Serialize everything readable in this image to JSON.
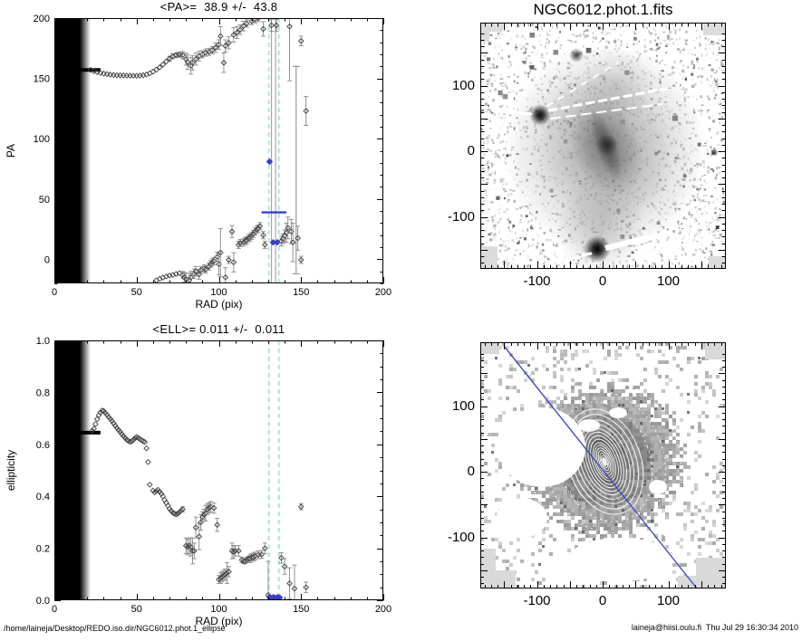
{
  "window": {
    "background": "#ffffff"
  },
  "panels": {
    "pa_plot": {
      "title": "<PA>=  38.9 +/-  43.8",
      "xlabel": "RAD (pix)",
      "ylabel": "PA"
    },
    "ell_plot": {
      "title": "<ELL>= 0.011 +/-  0.011",
      "xlabel": "RAD (pix)",
      "ylabel": "ellipticity"
    },
    "image_top": {
      "title": "NGC6012.phot.1.fits"
    },
    "image_bottom": {
      "overlay": "ellipse-fit contours and blue position-angle line"
    }
  },
  "footer": {
    "left": "/home/laineja/Desktop/REDO.iso.dir/NGC6012.phot.1_ellipse",
    "right": "laineja@hiisi.oulu.fi  Thu Jul 29 16:30:34 2010"
  },
  "colors": {
    "axis": "#000000",
    "point_stroke": "#3f3f3f",
    "error_bar": "#878787",
    "gray_vline": "#999999",
    "cyan_dashed": "#a9eaea",
    "blue": "#3b3bcb",
    "band": "#000000"
  },
  "chart_data": [
    {
      "id": "pa",
      "type": "scatter",
      "title": "<PA>=  38.9 +/-  43.8",
      "xlabel": "RAD (pix)",
      "ylabel": "PA",
      "xlim": [
        0,
        200
      ],
      "ylim": [
        -20,
        200
      ],
      "xticks": [
        0,
        50,
        100,
        150,
        200
      ],
      "xtick_labels": [
        "0",
        "50",
        "100",
        "150",
        "200"
      ],
      "yticks": [
        0,
        50,
        100,
        150,
        200
      ],
      "ytick_labels": [
        "0",
        "50",
        "100",
        "150",
        "200"
      ],
      "xminor": 10,
      "yminor": 10,
      "grid": false,
      "mask_band": {
        "x0": 0,
        "x1": 22
      },
      "thick_line": {
        "y": 157,
        "x0": 0,
        "x1": 28
      },
      "cyan_dashed_vlines": [
        130.4,
        136.5
      ],
      "gray_vlines": [
        132,
        134.5
      ],
      "tall_error_bar": {
        "x": 147,
        "y0": -12,
        "y1": 160
      },
      "mean_segment": {
        "y": 38.9,
        "x0": 126,
        "x1": 141
      },
      "blue_points": [
        [
          130.8,
          81
        ],
        [
          133,
          14
        ],
        [
          135.5,
          14
        ]
      ],
      "points": [
        [
          22,
          157,
          0
        ],
        [
          24,
          156,
          0
        ],
        [
          26,
          155.2,
          0
        ],
        [
          28,
          154.5,
          0
        ],
        [
          30,
          154,
          0
        ],
        [
          32,
          153.5,
          0
        ],
        [
          34,
          153.1,
          0
        ],
        [
          36,
          152.8,
          0
        ],
        [
          38,
          152.6,
          0
        ],
        [
          40,
          152.5,
          0
        ],
        [
          42,
          152.4,
          0
        ],
        [
          44,
          152.3,
          0
        ],
        [
          46,
          152.3,
          0
        ],
        [
          48,
          152.2,
          0
        ],
        [
          50,
          152.2,
          0
        ],
        [
          52,
          152.3,
          0
        ],
        [
          54,
          152.6,
          0
        ],
        [
          56,
          153.2,
          0
        ],
        [
          58,
          154.2,
          0
        ],
        [
          60,
          155.6,
          0
        ],
        [
          62,
          157.2,
          0
        ],
        [
          64,
          159.2,
          0
        ],
        [
          66,
          161.5,
          0
        ],
        [
          68,
          164,
          0
        ],
        [
          70,
          166.4,
          2
        ],
        [
          72,
          168.3,
          2
        ],
        [
          74,
          169.3,
          2
        ],
        [
          76,
          169.7,
          2
        ],
        [
          78,
          169.3,
          3
        ],
        [
          80,
          166,
          5
        ],
        [
          81,
          163.5,
          6
        ],
        [
          83,
          160.5,
          7
        ],
        [
          84,
          163,
          6
        ],
        [
          86,
          166,
          5
        ],
        [
          88,
          168.5,
          4
        ],
        [
          90,
          170,
          3
        ],
        [
          92,
          171.4,
          3
        ],
        [
          94,
          172,
          3
        ],
        [
          96,
          173.4,
          3
        ],
        [
          98,
          175.5,
          4
        ],
        [
          100,
          178,
          4
        ],
        [
          101,
          185,
          8
        ],
        [
          103,
          163,
          8
        ],
        [
          104,
          177,
          5
        ],
        [
          106,
          179.5,
          5
        ],
        [
          109,
          186,
          6
        ],
        [
          111,
          188,
          5
        ],
        [
          113,
          190.4,
          4
        ],
        [
          115,
          193.4,
          4
        ],
        [
          117,
          195.5,
          3
        ],
        [
          120,
          197.5,
          3
        ],
        [
          122,
          199,
          3
        ],
        [
          124,
          200,
          3
        ],
        [
          127,
          191,
          6
        ],
        [
          132,
          194,
          5
        ],
        [
          135,
          194,
          5
        ],
        [
          143,
          193,
          45
        ],
        [
          150,
          181,
          4
        ],
        [
          153,
          123,
          12
        ],
        [
          62,
          -17.5,
          0
        ],
        [
          64,
          -16.2,
          0
        ],
        [
          66,
          -15.2,
          0
        ],
        [
          68,
          -14.2,
          0
        ],
        [
          70,
          -13.5,
          0
        ],
        [
          72,
          -13,
          0
        ],
        [
          74,
          -12.2,
          0
        ],
        [
          76,
          -11.6,
          0
        ],
        [
          78,
          -13,
          3
        ],
        [
          79,
          -15,
          4
        ],
        [
          80,
          -16.5,
          5
        ],
        [
          82,
          -17.5,
          6
        ],
        [
          83,
          -15,
          5
        ],
        [
          85,
          -12,
          4
        ],
        [
          86,
          -10,
          4
        ],
        [
          88,
          -12.5,
          4
        ],
        [
          89,
          -9,
          3
        ],
        [
          91,
          -7.5,
          3
        ],
        [
          92,
          -8.5,
          3
        ],
        [
          94,
          -6,
          3
        ],
        [
          95,
          -4,
          3
        ],
        [
          96,
          -2.5,
          3
        ],
        [
          97,
          -1.5,
          3
        ],
        [
          99,
          2,
          4
        ],
        [
          100,
          -4,
          9
        ],
        [
          101,
          5.5,
          20
        ],
        [
          104,
          -15,
          8
        ],
        [
          106,
          -0.5,
          3
        ],
        [
          108,
          23,
          5
        ],
        [
          109,
          -2.5,
          8
        ],
        [
          112,
          12,
          3
        ],
        [
          113,
          13.5,
          3
        ],
        [
          115,
          14,
          3
        ],
        [
          116,
          15.2,
          3
        ],
        [
          117,
          15.8,
          3
        ],
        [
          118,
          17.5,
          3
        ],
        [
          119,
          18.2,
          3
        ],
        [
          120,
          19.5,
          3
        ],
        [
          121,
          21,
          3
        ],
        [
          122,
          23,
          3
        ],
        [
          123,
          24.5,
          3
        ],
        [
          124,
          25.5,
          3
        ],
        [
          125,
          27.5,
          3
        ],
        [
          127,
          20,
          3
        ],
        [
          128,
          12,
          3
        ],
        [
          138,
          15,
          4
        ],
        [
          139,
          17,
          4
        ],
        [
          140,
          19.5,
          5
        ],
        [
          141,
          22,
          8
        ],
        [
          142,
          26,
          9
        ],
        [
          144,
          23,
          10
        ],
        [
          145,
          14,
          16
        ],
        [
          148,
          17.5,
          10
        ],
        [
          150,
          -0.5,
          3
        ]
      ]
    },
    {
      "id": "ell",
      "type": "scatter",
      "title": "<ELL>= 0.011 +/-  0.011",
      "xlabel": "RAD (pix)",
      "ylabel": "ellipticity",
      "xlim": [
        0,
        200
      ],
      "ylim": [
        0,
        1
      ],
      "xticks": [
        0,
        50,
        100,
        150,
        200
      ],
      "xtick_labels": [
        "0",
        "50",
        "100",
        "150",
        "200"
      ],
      "yticks": [
        0,
        0.2,
        0.4,
        0.6,
        0.8,
        1.0
      ],
      "ytick_labels": [
        "0.0",
        "0.2",
        "0.4",
        "0.6",
        "0.8",
        "1.0"
      ],
      "xminor": 10,
      "yminor": 0.05,
      "grid": false,
      "mask_band": {
        "x0": 0,
        "x1": 22
      },
      "thick_line": {
        "y": 0.645,
        "x0": 0,
        "x1": 28
      },
      "cyan_dashed_vlines": [
        130.4,
        136.5
      ],
      "gray_vlines": [],
      "mean_segment": {
        "y": 0.011,
        "x0": 129.5,
        "x1": 137.5
      },
      "blue_points": [
        [
          130.8,
          0.012
        ],
        [
          132,
          0.008
        ],
        [
          133.2,
          0.012
        ],
        [
          134.5,
          0.008
        ],
        [
          135.8,
          0.012
        ],
        [
          137,
          0.01
        ]
      ],
      "points": [
        [
          23,
          0.652,
          0
        ],
        [
          24,
          0.66,
          0
        ],
        [
          25,
          0.678,
          0
        ],
        [
          26,
          0.697,
          0
        ],
        [
          27,
          0.712,
          0
        ],
        [
          28,
          0.723,
          0
        ],
        [
          29,
          0.73,
          0
        ],
        [
          30,
          0.728,
          0
        ],
        [
          31,
          0.721,
          0
        ],
        [
          32,
          0.714,
          0
        ],
        [
          33,
          0.705,
          0
        ],
        [
          34,
          0.698,
          0
        ],
        [
          35,
          0.69,
          0
        ],
        [
          36,
          0.681,
          0
        ],
        [
          37,
          0.672,
          0
        ],
        [
          38,
          0.663,
          0
        ],
        [
          39,
          0.655,
          0
        ],
        [
          40,
          0.648,
          0
        ],
        [
          41,
          0.64,
          0
        ],
        [
          42,
          0.632,
          0
        ],
        [
          43,
          0.625,
          0
        ],
        [
          44,
          0.618,
          0
        ],
        [
          45,
          0.613,
          0
        ],
        [
          46,
          0.61,
          0
        ],
        [
          47,
          0.612,
          0
        ],
        [
          48,
          0.617,
          0
        ],
        [
          49,
          0.624,
          0
        ],
        [
          50,
          0.628,
          0
        ],
        [
          51,
          0.625,
          0
        ],
        [
          52,
          0.62,
          0
        ],
        [
          53,
          0.616,
          0
        ],
        [
          54,
          0.612,
          0
        ],
        [
          55,
          0.609,
          0
        ],
        [
          56,
          0.585,
          0
        ],
        [
          57,
          0.532,
          0
        ],
        [
          58,
          0.445,
          0
        ],
        [
          60,
          0.422,
          0
        ],
        [
          61,
          0.415,
          0
        ],
        [
          62,
          0.42,
          0
        ],
        [
          63,
          0.425,
          0
        ],
        [
          64,
          0.418,
          0
        ],
        [
          65,
          0.41,
          0
        ],
        [
          66,
          0.4,
          0
        ],
        [
          67,
          0.386,
          0
        ],
        [
          68,
          0.375,
          0
        ],
        [
          69,
          0.364,
          0
        ],
        [
          70,
          0.352,
          0
        ],
        [
          71,
          0.344,
          0
        ],
        [
          72,
          0.337,
          0
        ],
        [
          73,
          0.333,
          0
        ],
        [
          74,
          0.331,
          0
        ],
        [
          75,
          0.333,
          0
        ],
        [
          76,
          0.339,
          0
        ],
        [
          77,
          0.345,
          0
        ],
        [
          78,
          0.35,
          0.01
        ],
        [
          80,
          0.21,
          0.03
        ],
        [
          81,
          0.205,
          0.03
        ],
        [
          82,
          0.21,
          0.03
        ],
        [
          83,
          0.205,
          0.035
        ],
        [
          84,
          0.19,
          0.05
        ],
        [
          85,
          0.19,
          0.03
        ],
        [
          86,
          0.28,
          0.04
        ],
        [
          88,
          0.245,
          0.05
        ],
        [
          89,
          0.3,
          0.03
        ],
        [
          90,
          0.32,
          0.02
        ],
        [
          91,
          0.33,
          0.02
        ],
        [
          92,
          0.335,
          0.03
        ],
        [
          93,
          0.35,
          0.02
        ],
        [
          94,
          0.355,
          0.02
        ],
        [
          95,
          0.36,
          0.02
        ],
        [
          97,
          0.355,
          0.02
        ],
        [
          99,
          0.29,
          0.025
        ],
        [
          100,
          0.08,
          0.015
        ],
        [
          101,
          0.085,
          0.02
        ],
        [
          102,
          0.09,
          0.02
        ],
        [
          103,
          0.096,
          0.02
        ],
        [
          104,
          0.1,
          0.02
        ],
        [
          105,
          0.105,
          0.04
        ],
        [
          106,
          0.11,
          0.02
        ],
        [
          108,
          0.19,
          0.03
        ],
        [
          109,
          0.186,
          0.025
        ],
        [
          110,
          0.19,
          0.02
        ],
        [
          112,
          0.19,
          0.02
        ],
        [
          114,
          0.155,
          0.01
        ],
        [
          115,
          0.15,
          0.01
        ],
        [
          116,
          0.15,
          0.01
        ],
        [
          117,
          0.155,
          0.01
        ],
        [
          118,
          0.16,
          0.01
        ],
        [
          119,
          0.16,
          0.015
        ],
        [
          120,
          0.165,
          0.015
        ],
        [
          121,
          0.166,
          0.015
        ],
        [
          122,
          0.17,
          0.015
        ],
        [
          124,
          0.175,
          0.015
        ],
        [
          126,
          0.176,
          0.015
        ],
        [
          128,
          0.2,
          0.02
        ],
        [
          130,
          0.02,
          0.13
        ],
        [
          138,
          0.163,
          0.02
        ],
        [
          140,
          0.13,
          0.03
        ],
        [
          143,
          0.065,
          0.06
        ],
        [
          146,
          0.045,
          0.09
        ],
        [
          150,
          0.36,
          0.012
        ],
        [
          153,
          0.05,
          0.02
        ]
      ]
    },
    {
      "id": "galaxy_image",
      "type": "heatmap",
      "title": "NGC6012.phot.1.fits",
      "xticks": [
        -100,
        0,
        100
      ],
      "xtick_labels": [
        "-100",
        "0",
        "100"
      ],
      "yticks": [
        100,
        0,
        -100
      ],
      "ytick_labels": [
        "100",
        "0",
        "-100"
      ],
      "xlim": [
        -186,
        188
      ],
      "ylim": [
        -178,
        194
      ],
      "features": [
        "negative grayscale sky with speckle noise",
        "elliptical galaxy centered near (0,0), bar PA ~155 deg",
        "bright star near (-95,55) with white masked diffraction streaks",
        "bright star near (-8,-150)"
      ]
    },
    {
      "id": "galaxy_fit_image",
      "type": "heatmap",
      "title": "",
      "xticks": [
        -100,
        0,
        100
      ],
      "xtick_labels": [
        "-100",
        "0",
        "100"
      ],
      "yticks": [
        100,
        0,
        -100
      ],
      "ytick_labels": [
        "100",
        "0",
        "-100"
      ],
      "xlim": [
        -186,
        188
      ],
      "ylim": [
        -178,
        194
      ],
      "features": [
        "masked grayscale galaxy pixels",
        "nested white fitted ellipses centered near (1,7), PA ~155 deg",
        "outer dotted ellipses",
        "blue straight line from (-150,190) to (153,-190)"
      ]
    }
  ]
}
